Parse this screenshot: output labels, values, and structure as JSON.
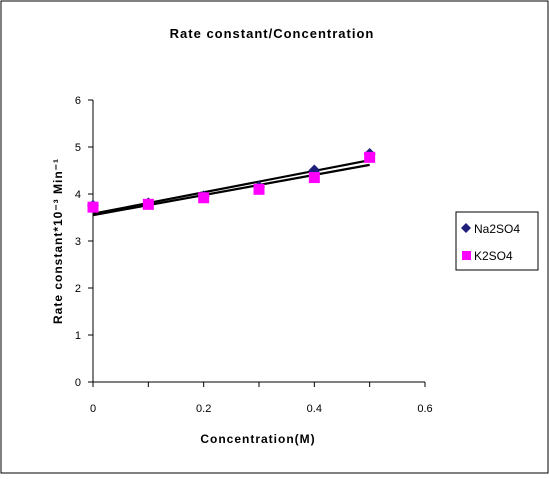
{
  "chart_data": {
    "type": "scatter",
    "title": "Rate constant/Concentration",
    "xlabel": "Concentration(M)",
    "ylabel": "Rate constant*10⁻³ Min⁻¹",
    "xlim": [
      0,
      0.6
    ],
    "ylim": [
      0,
      6
    ],
    "x_ticks": [
      "0",
      "0.2",
      "0.4",
      "0.6"
    ],
    "y_ticks": [
      "0",
      "1",
      "2",
      "3",
      "4",
      "5",
      "6"
    ],
    "grid": false,
    "legend_position": "right",
    "series": [
      {
        "name": "Na2SO4",
        "marker": "diamond",
        "color": "#1f1f7a",
        "points": [
          [
            0,
            3.75
          ],
          [
            0.1,
            3.8
          ],
          [
            0.2,
            3.95
          ],
          [
            0.3,
            4.15
          ],
          [
            0.4,
            4.5
          ],
          [
            0.5,
            4.85
          ]
        ],
        "trendline": [
          [
            0,
            3.58
          ],
          [
            0.5,
            4.72
          ]
        ]
      },
      {
        "name": "K2SO4",
        "marker": "square",
        "color": "#ff00ff",
        "points": [
          [
            0,
            3.72
          ],
          [
            0.1,
            3.78
          ],
          [
            0.2,
            3.92
          ],
          [
            0.3,
            4.1
          ],
          [
            0.4,
            4.35
          ],
          [
            0.5,
            4.78
          ]
        ],
        "trendline": [
          [
            0,
            3.55
          ],
          [
            0.5,
            4.62
          ]
        ]
      }
    ]
  }
}
